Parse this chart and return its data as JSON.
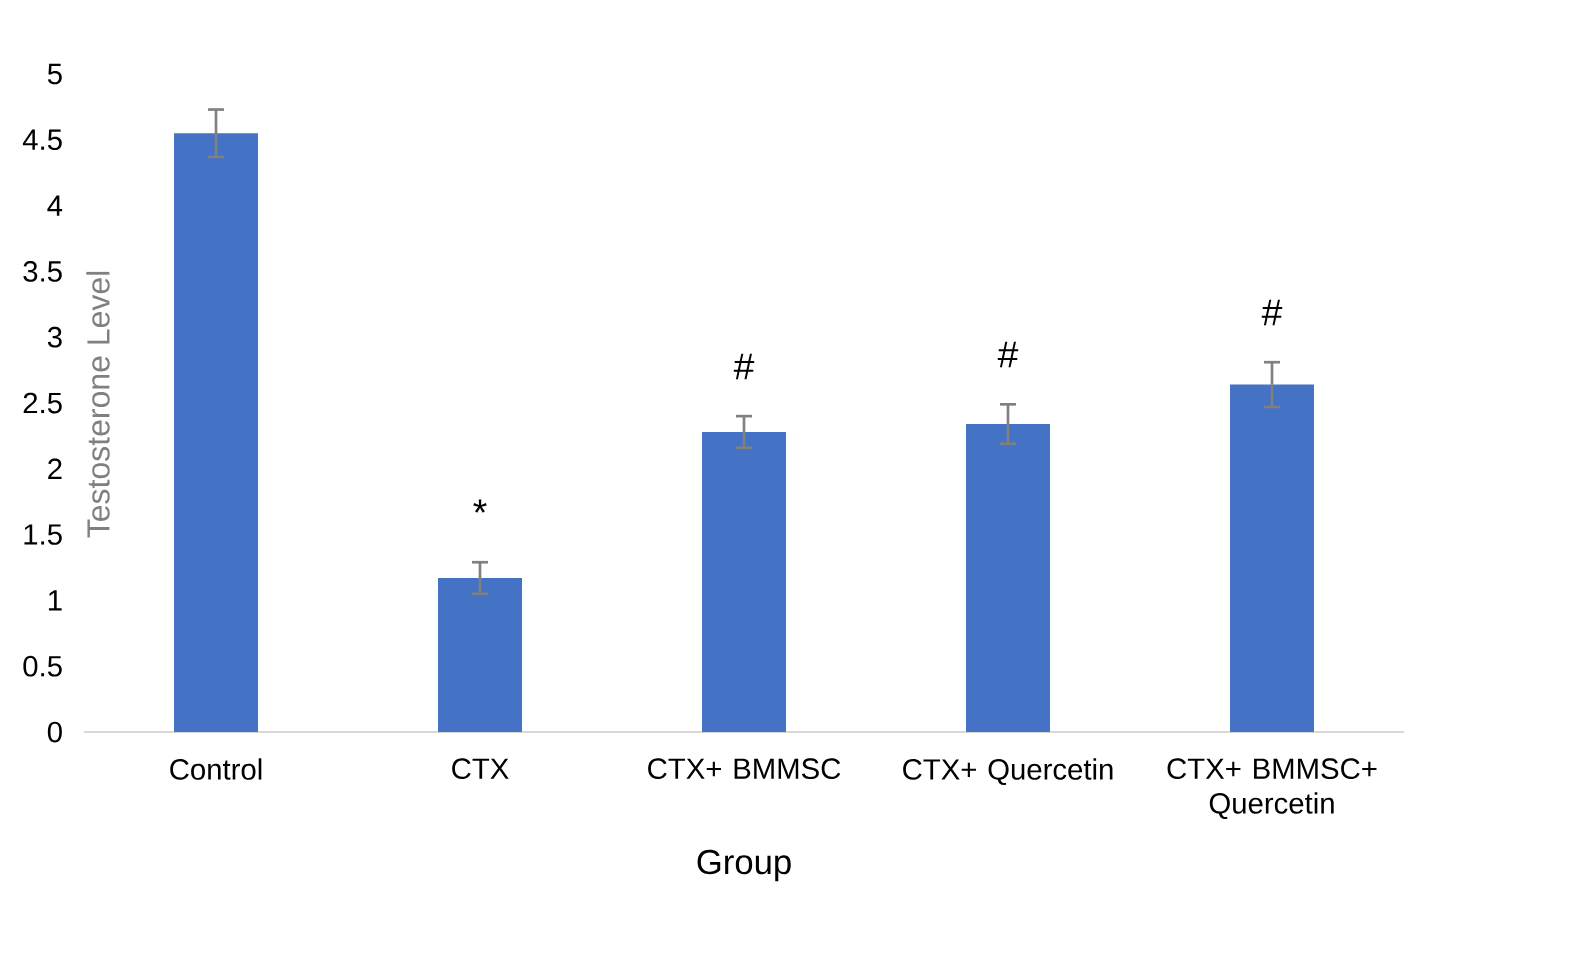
{
  "chart_data": {
    "type": "bar",
    "xlabel": "Group",
    "ylabel": "Testosterone Level",
    "categories": [
      "Control",
      "CTX",
      "CTX+ BMMSC",
      "CTX+ Quercetin",
      "CTX+ BMMSC+ Quercetin"
    ],
    "values": [
      4.55,
      1.17,
      2.28,
      2.34,
      2.64
    ],
    "errors": [
      0.18,
      0.12,
      0.12,
      0.15,
      0.17
    ],
    "color": "#4472c4",
    "ylim": [
      0,
      5
    ],
    "yticks": [
      0,
      0.5,
      1,
      1.5,
      2,
      2.5,
      3,
      3.5,
      4,
      4.5,
      5
    ],
    "annotations": [
      {
        "text": "*",
        "x": "CTX",
        "y": 1.17
      },
      {
        "text": "#",
        "x": "CTX+ BMMSC",
        "y": 2.28
      },
      {
        "text": "#",
        "x": "CTX+ Quercetin",
        "y": 2.34
      },
      {
        "text": "#",
        "x": "CTX+ BMMSC+ Quercetin",
        "y": 2.64
      }
    ]
  }
}
